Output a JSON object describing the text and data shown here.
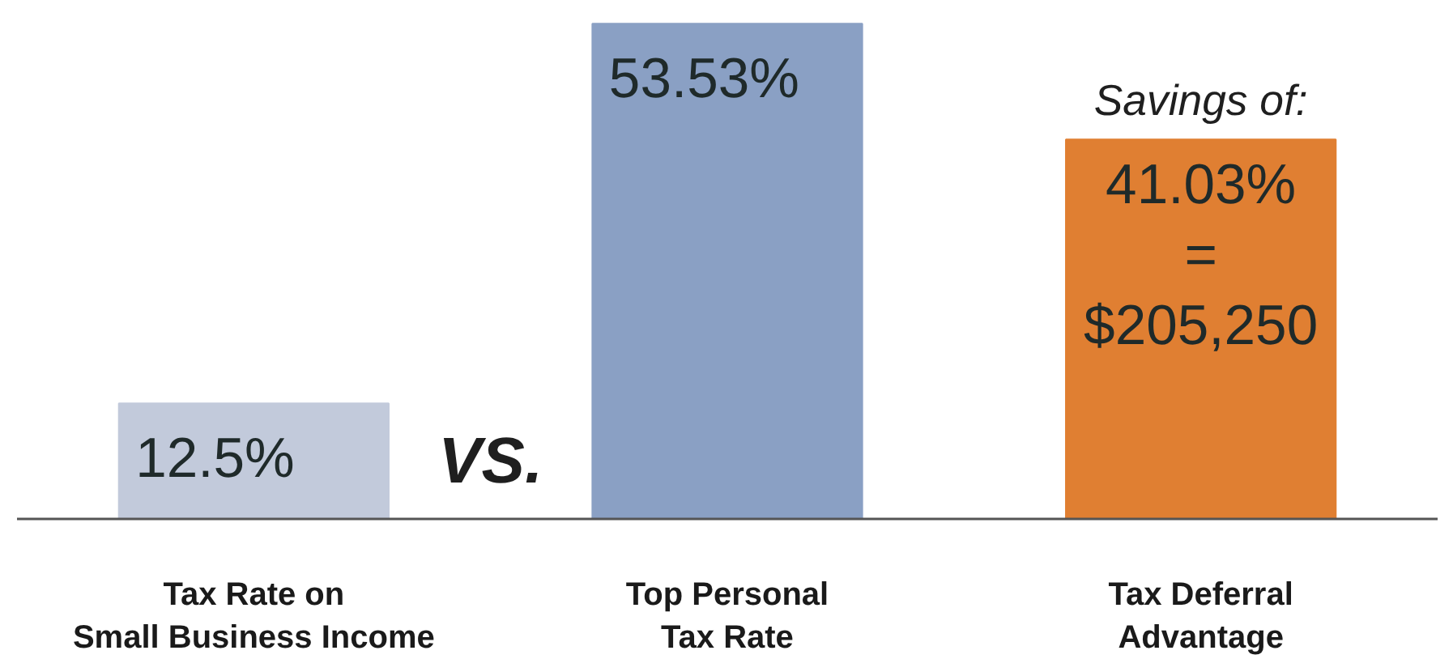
{
  "chart_data": {
    "type": "bar",
    "categories": [
      "Tax Rate on\nSmall Business Income",
      "Top Personal\nTax Rate",
      "Tax Deferral\nAdvantage"
    ],
    "values": [
      12.5,
      53.53,
      41.03
    ],
    "colors": [
      "#c2cadb",
      "#8aa0c4",
      "#e07f32"
    ],
    "value_labels": [
      "12.5%",
      "53.53%",
      "41.03%\n=\n$205,250"
    ],
    "annotations": [
      "VS.",
      "Savings of:"
    ],
    "grid": false
  }
}
